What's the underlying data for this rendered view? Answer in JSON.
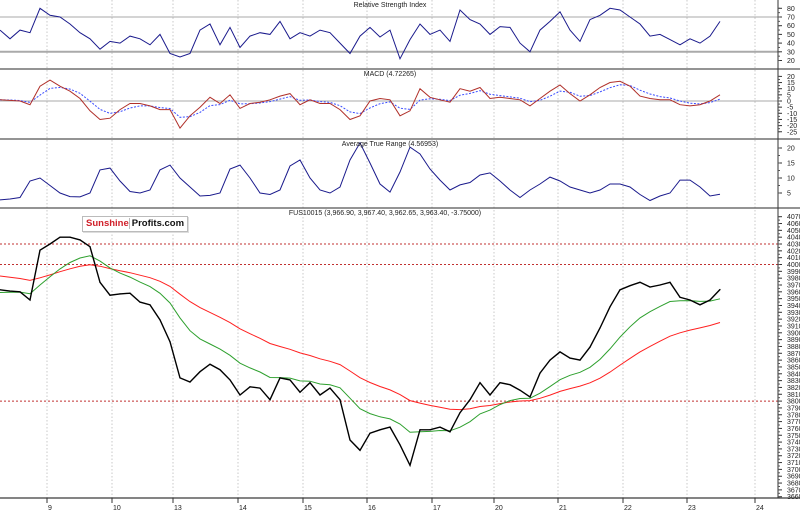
{
  "x_axis": {
    "labels": [
      "9",
      "10",
      "13",
      "14",
      "15",
      "16",
      "17",
      "20",
      "21",
      "22",
      "23",
      "24"
    ]
  },
  "logo": {
    "part1": "Sunshine",
    "part2": "Profits.com"
  },
  "colors": {
    "indicator": "#1a1a8c",
    "macd": "#b0302a",
    "signal": "#3a4cff",
    "price": "#000000",
    "ma_fast": "#2ea02e",
    "ma_slow": "#ff2020",
    "level_line": "#c03030",
    "grid": "#c8c8c8"
  },
  "chart_data": [
    {
      "id": "rsi",
      "type": "line",
      "title": "Relative Strength Index",
      "ylim": [
        15,
        85
      ],
      "yticks": [
        "80",
        "70",
        "60",
        "50",
        "40",
        "30",
        "20"
      ],
      "reference_lines": [
        70,
        30
      ],
      "grid": true,
      "series": [
        {
          "values": [
            55,
            45,
            55,
            52,
            80,
            72,
            70,
            62,
            52,
            45,
            33,
            42,
            40,
            48,
            45,
            38,
            50,
            28,
            24,
            28,
            55,
            62,
            38,
            58,
            35,
            48,
            52,
            50,
            65,
            45,
            52,
            48,
            55,
            52,
            40,
            28,
            48,
            58,
            47,
            55,
            22,
            44,
            62,
            50,
            55,
            42,
            78,
            67,
            62,
            50,
            59,
            58,
            40,
            30,
            55,
            65,
            76,
            55,
            42,
            67,
            72,
            80,
            78,
            70,
            62,
            48,
            50,
            44,
            38,
            45,
            40,
            48,
            65
          ]
        }
      ]
    },
    {
      "id": "macd",
      "type": "line",
      "title": "MACD (4.72265)",
      "ylim": [
        -28,
        24
      ],
      "yticks": [
        "20",
        "15",
        "10",
        "5",
        "0",
        "-5",
        "-10",
        "-15",
        "-20",
        "-25"
      ],
      "reference_lines": [
        0
      ],
      "grid": true,
      "series": [
        {
          "values": [
            1,
            0.5,
            0,
            -3,
            12,
            17,
            12,
            8,
            2,
            -8,
            -15,
            -14,
            -7,
            -2,
            -2,
            -4,
            -7,
            -7,
            -22,
            -12,
            -5,
            3,
            -2,
            5,
            -6,
            -2,
            -1,
            1,
            4,
            6,
            -3,
            1,
            -2,
            -2,
            -7,
            -15,
            -12,
            0,
            2,
            1,
            -12,
            -8,
            10,
            3,
            1,
            -1,
            10,
            8,
            11,
            2,
            3,
            2,
            1,
            -4,
            2,
            8,
            13,
            6,
            0,
            5,
            11,
            15,
            16,
            12,
            4,
            2,
            1,
            1,
            -3,
            -4,
            -3,
            0,
            5
          ]
        }
      ]
    },
    {
      "id": "atr",
      "type": "line",
      "title": "Average True Range (4.56953)",
      "ylim": [
        1,
        22
      ],
      "yticks": [
        "20",
        "15",
        "10",
        "5"
      ],
      "grid": true,
      "series": [
        {
          "values": [
            2.7,
            3,
            3.5,
            9,
            10,
            7.5,
            5,
            3.8,
            3.7,
            5,
            12.7,
            13.3,
            9,
            5.5,
            5,
            6,
            12.7,
            14.3,
            10,
            7,
            4,
            4.2,
            5,
            13,
            14.3,
            10,
            5,
            4.5,
            6,
            14,
            16,
            10,
            6,
            5,
            7,
            16,
            21.7,
            15,
            8,
            5.3,
            12,
            20.3,
            18,
            13,
            9.3,
            6,
            7.7,
            8.5,
            11,
            11.7,
            9,
            6,
            3.5,
            6,
            8,
            10.3,
            9,
            7,
            6,
            5,
            6,
            8,
            8,
            7,
            4.5,
            2.5,
            4,
            5,
            9.3,
            9.3,
            7,
            4,
            4.6
          ]
        }
      ]
    },
    {
      "id": "price",
      "type": "line",
      "title": "FUS10015 (3,966.90, 3,967.40, 3,962.65, 3,963.40, -3.75000)",
      "ylim": [
        3650,
        4080
      ],
      "yticks": [
        "4070",
        "4060",
        "4050",
        "4040",
        "4030",
        "4020",
        "4010",
        "4000",
        "3990",
        "3980",
        "3970",
        "3960",
        "3950",
        "3940",
        "3930",
        "3920",
        "3910",
        "3900",
        "3890",
        "3880",
        "3870",
        "3860",
        "3850",
        "3840",
        "3830",
        "3820",
        "3810",
        "3800",
        "3790",
        "3780",
        "3770",
        "3760",
        "3750",
        "3740",
        "3730",
        "3720",
        "3710",
        "3700",
        "3690",
        "3680",
        "3670",
        "3660"
      ],
      "reference_lines": [
        4030,
        4000,
        3800
      ],
      "grid": true,
      "series": [
        {
          "values": [
            3963,
            3961,
            3960,
            3948,
            4021,
            4030,
            4040,
            4040,
            4036,
            4026,
            3974,
            3955,
            3957,
            3958,
            3945,
            3941,
            3919,
            3887,
            3834,
            3828,
            3843,
            3854,
            3846,
            3831,
            3809,
            3821,
            3819,
            3802,
            3834,
            3831,
            3813,
            3827,
            3809,
            3819,
            3802,
            3743,
            3728,
            3753,
            3758,
            3762,
            3736,
            3706,
            3758,
            3758,
            3762,
            3755,
            3783,
            3802,
            3827,
            3809,
            3827,
            3824,
            3816,
            3806,
            3841,
            3860,
            3872,
            3863,
            3860,
            3879,
            3907,
            3938,
            3963,
            3969,
            3974,
            3967,
            3970,
            3974,
            3952,
            3948,
            3941,
            3948,
            3963.4
          ]
        }
      ]
    }
  ]
}
